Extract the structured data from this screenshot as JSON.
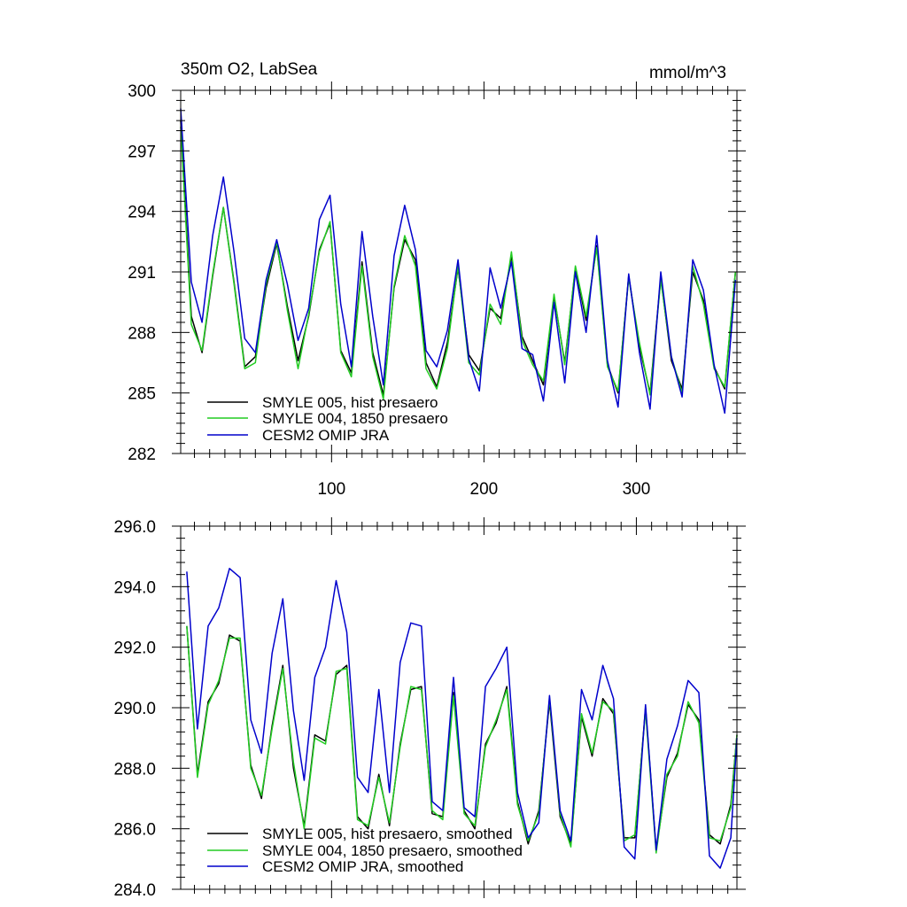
{
  "chart_data": [
    {
      "type": "line",
      "title_left": "350m O2, LabSea",
      "title_right": "mmol/m^3",
      "xlim": [
        1,
        366
      ],
      "ylim": [
        282,
        300
      ],
      "x_ticks": [
        100,
        200,
        300
      ],
      "x_tick_labels": [
        "100",
        "200",
        "300"
      ],
      "y_ticks": [
        282,
        285,
        288,
        291,
        294,
        297,
        300
      ],
      "y_tick_labels": [
        "282",
        "285",
        "288",
        "291",
        "294",
        "297",
        "300"
      ],
      "legend": "bottom-left",
      "x": [
        1,
        8,
        15,
        22,
        29,
        36,
        43,
        50,
        57,
        64,
        71,
        78,
        85,
        92,
        99,
        106,
        113,
        120,
        127,
        134,
        141,
        148,
        155,
        162,
        169,
        176,
        183,
        190,
        197,
        204,
        211,
        218,
        225,
        232,
        239,
        246,
        253,
        260,
        267,
        274,
        281,
        288,
        295,
        302,
        309,
        316,
        323,
        330,
        337,
        344,
        351,
        358,
        365
      ],
      "series": [
        {
          "name": "SMYLE 005, hist presaero",
          "color": "#000000",
          "values": [
            298.5,
            288.8,
            287.0,
            290.8,
            294.2,
            290.5,
            286.3,
            286.8,
            290.2,
            292.4,
            289.3,
            286.6,
            288.8,
            292.1,
            293.4,
            287.1,
            286.0,
            291.5,
            287.0,
            284.9,
            290.2,
            292.6,
            291.6,
            286.5,
            285.3,
            287.5,
            291.2,
            286.9,
            286.1,
            289.2,
            288.7,
            291.8,
            287.8,
            286.6,
            285.4,
            289.8,
            286.5,
            291.2,
            288.6,
            292.3,
            286.4,
            285.0,
            290.8,
            287.3,
            285.0,
            290.7,
            286.6,
            285.2,
            291.0,
            289.6,
            286.3,
            285.2,
            291.0
          ]
        },
        {
          "name": "SMYLE 004, 1850 presaero",
          "color": "#22cc22",
          "values": [
            298.2,
            288.4,
            287.1,
            290.9,
            294.2,
            290.4,
            286.2,
            286.5,
            290.4,
            292.5,
            289.1,
            286.2,
            288.9,
            292.0,
            293.5,
            287.0,
            285.8,
            291.3,
            286.8,
            284.7,
            290.3,
            292.8,
            291.3,
            286.2,
            285.2,
            287.2,
            291.3,
            286.5,
            285.9,
            289.4,
            288.4,
            292.0,
            287.6,
            286.4,
            285.6,
            289.9,
            286.4,
            291.3,
            288.8,
            292.2,
            286.3,
            285.1,
            290.7,
            287.5,
            284.9,
            290.6,
            286.8,
            285.0,
            291.3,
            289.4,
            286.2,
            285.3,
            291.0
          ]
        },
        {
          "name": "CESM2 OMIP JRA",
          "color": "#0000cc",
          "values": [
            299.1,
            290.5,
            288.5,
            292.8,
            295.7,
            292.0,
            287.7,
            287.0,
            290.6,
            292.6,
            290.4,
            287.6,
            289.2,
            293.6,
            294.8,
            289.4,
            286.3,
            293.0,
            288.8,
            285.4,
            291.8,
            294.3,
            292.1,
            287.1,
            286.3,
            288.1,
            291.6,
            286.7,
            285.1,
            291.2,
            289.2,
            291.5,
            287.2,
            286.9,
            284.6,
            289.5,
            285.5,
            291.0,
            288.0,
            292.8,
            286.6,
            284.3,
            290.9,
            287.0,
            284.2,
            291.0,
            286.8,
            284.8,
            291.6,
            290.1,
            286.4,
            284.0,
            290.6
          ]
        }
      ]
    },
    {
      "type": "line",
      "xlim": [
        1,
        366
      ],
      "ylim": [
        284,
        296
      ],
      "x_ticks": [
        100,
        200,
        300
      ],
      "y_ticks": [
        284,
        286,
        288,
        290,
        292,
        294,
        296
      ],
      "y_tick_labels": [
        "284.0",
        "286.0",
        "288.0",
        "290.0",
        "292.0",
        "294.0",
        "296.0"
      ],
      "legend": "bottom-left",
      "x": [
        5,
        12,
        19,
        26,
        33,
        40,
        47,
        54,
        61,
        68,
        75,
        82,
        89,
        96,
        103,
        110,
        117,
        124,
        131,
        138,
        145,
        152,
        159,
        166,
        173,
        180,
        187,
        194,
        201,
        208,
        215,
        222,
        229,
        236,
        243,
        250,
        257,
        264,
        271,
        278,
        285,
        292,
        299,
        306,
        313,
        320,
        327,
        334,
        341,
        348,
        355,
        362,
        366
      ],
      "series": [
        {
          "name": "SMYLE 005, hist presaero, smoothed",
          "color": "#000000",
          "values": [
            292.7,
            287.8,
            290.2,
            290.8,
            292.4,
            292.2,
            288.1,
            287.0,
            289.4,
            291.4,
            288.0,
            286.1,
            289.1,
            288.9,
            291.1,
            291.4,
            286.4,
            286.0,
            287.8,
            286.1,
            288.8,
            290.6,
            290.7,
            286.5,
            286.4,
            290.5,
            286.6,
            286.0,
            288.8,
            289.5,
            290.7,
            286.9,
            285.5,
            286.6,
            290.2,
            286.4,
            285.5,
            289.7,
            288.4,
            290.3,
            289.8,
            285.7,
            285.7,
            290.0,
            285.3,
            287.7,
            288.5,
            290.1,
            289.6,
            285.8,
            285.5,
            286.8,
            289.1
          ]
        },
        {
          "name": "SMYLE 004, 1850 presaero, smoothed",
          "color": "#22cc22",
          "values": [
            292.7,
            287.7,
            290.1,
            290.9,
            292.3,
            292.3,
            288.0,
            287.1,
            289.3,
            291.3,
            288.2,
            286.0,
            289.0,
            288.8,
            291.2,
            291.3,
            286.3,
            286.1,
            287.7,
            286.2,
            288.7,
            290.7,
            290.6,
            286.6,
            286.3,
            290.4,
            286.5,
            286.1,
            288.7,
            289.6,
            290.6,
            286.8,
            285.6,
            286.5,
            290.3,
            286.5,
            285.4,
            289.8,
            288.5,
            290.2,
            289.9,
            285.6,
            285.8,
            289.9,
            285.2,
            287.8,
            288.4,
            290.2,
            289.5,
            285.7,
            285.6,
            286.7,
            289.1
          ]
        },
        {
          "name": "CESM2 OMIP JRA, smoothed",
          "color": "#0000cc",
          "values": [
            294.5,
            289.3,
            292.7,
            293.3,
            294.6,
            294.3,
            289.6,
            288.5,
            291.8,
            293.6,
            289.9,
            287.6,
            291.0,
            292.0,
            294.2,
            292.5,
            287.7,
            287.2,
            290.6,
            287.2,
            291.5,
            292.8,
            292.7,
            286.9,
            286.6,
            291.0,
            286.7,
            286.4,
            290.7,
            291.3,
            292.0,
            287.2,
            285.7,
            286.2,
            290.4,
            286.6,
            285.6,
            290.6,
            289.6,
            291.4,
            290.3,
            285.4,
            285.0,
            290.1,
            285.3,
            288.3,
            289.4,
            290.9,
            290.5,
            285.1,
            284.7,
            285.7,
            289.0
          ]
        }
      ]
    }
  ]
}
